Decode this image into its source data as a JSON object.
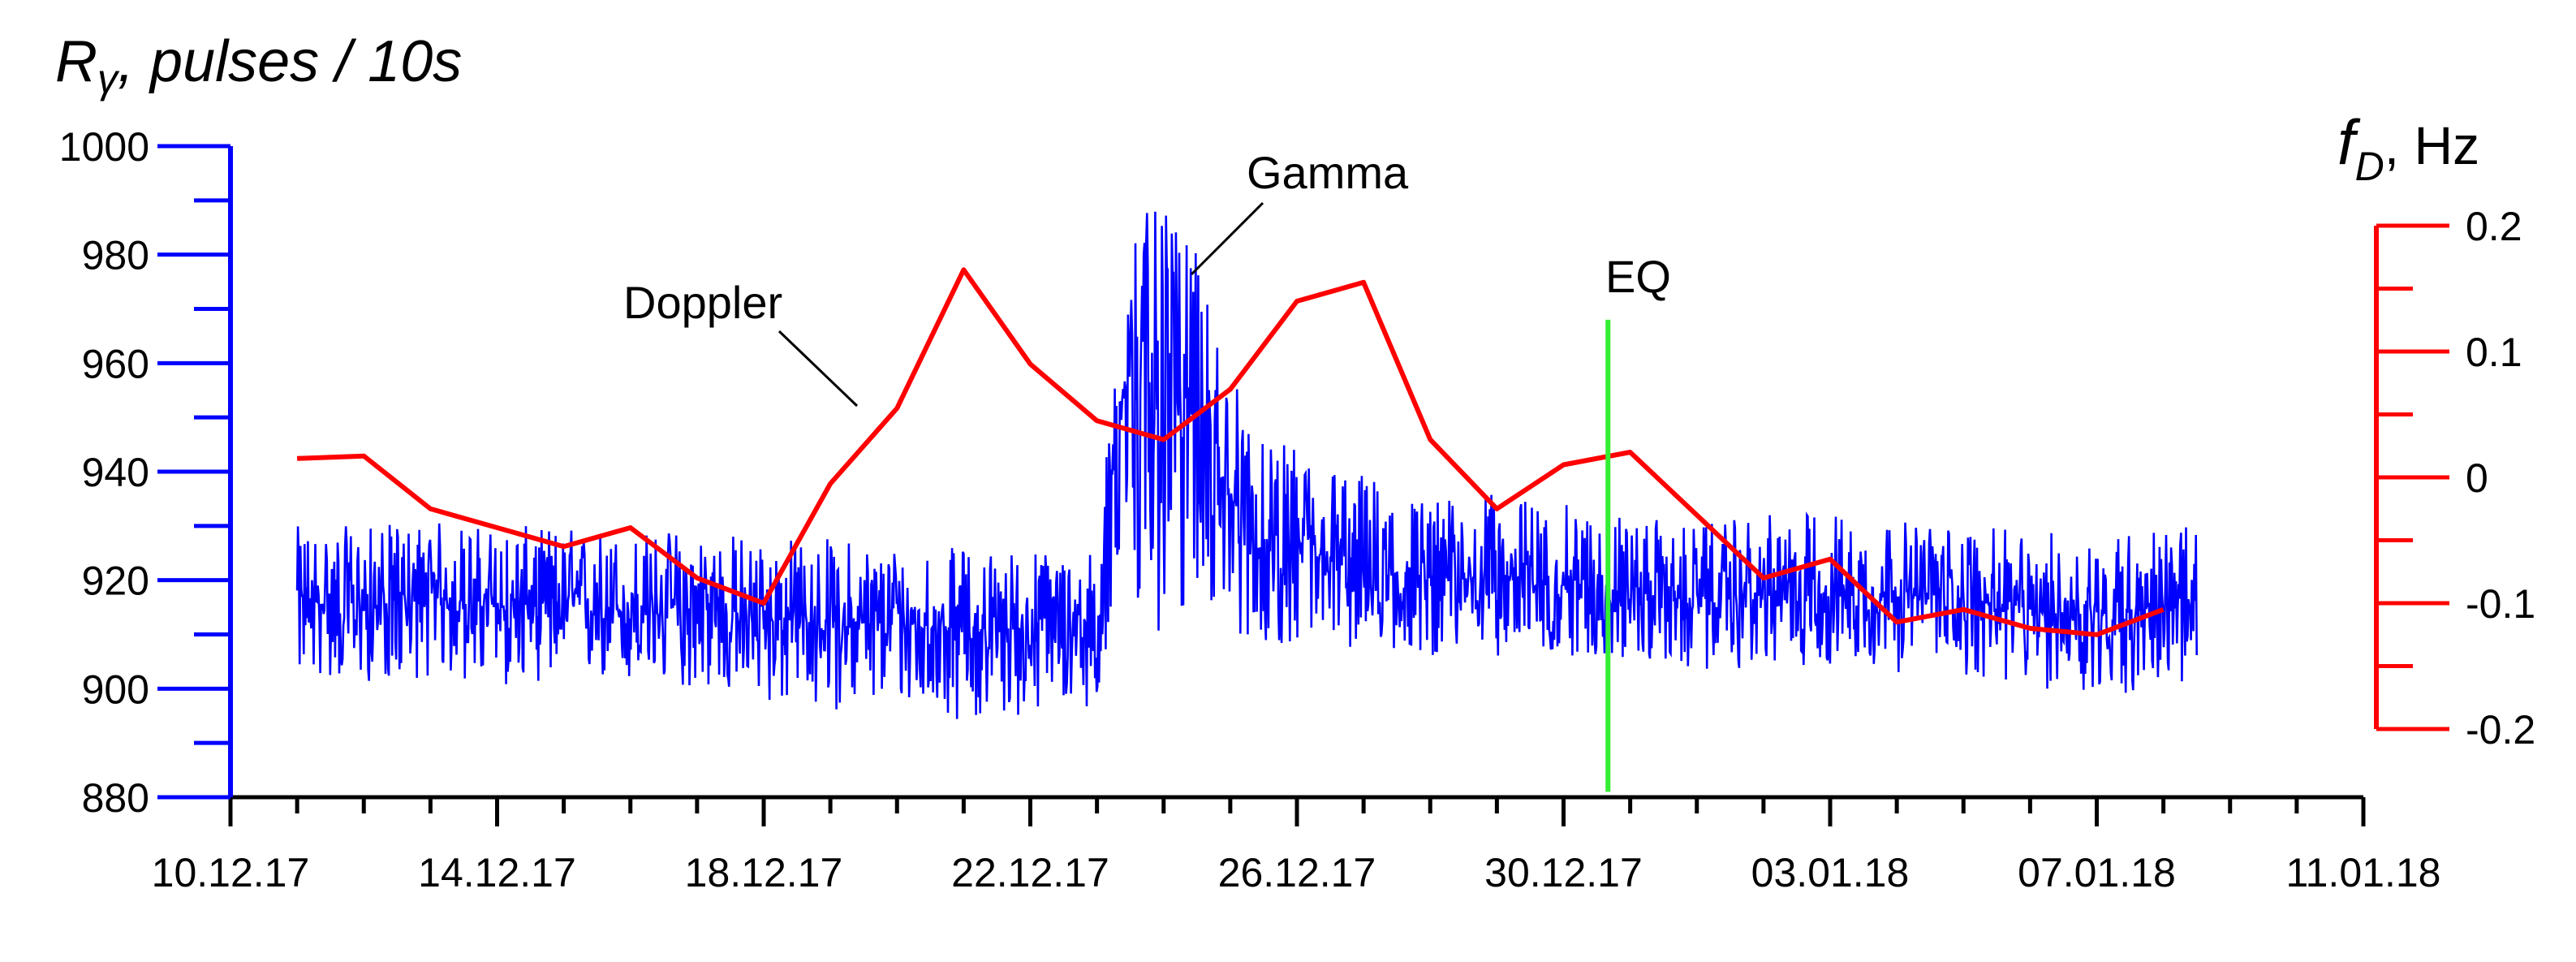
{
  "chart_data": {
    "type": "line",
    "title": "",
    "left_axis": {
      "label": "Rγ, pulses / 10s",
      "label_main": "R",
      "label_sub": "γ",
      "label_rest": ", pulses / 10s",
      "ylim": [
        880,
        1000
      ],
      "ticks": [
        880,
        900,
        920,
        940,
        960,
        980,
        1000
      ],
      "tick_labels": [
        "880",
        "900",
        "920",
        "940",
        "960",
        "980",
        "1000"
      ],
      "color": "#0000ff"
    },
    "right_axis": {
      "label": "fD, Hz",
      "label_main": "f",
      "label_sub": "D",
      "label_rest": ", Hz",
      "ylim": [
        -0.2,
        0.2
      ],
      "ticks": [
        -0.2,
        -0.1,
        0,
        0.1,
        0.2
      ],
      "tick_labels": [
        "-0.2",
        "-0.1",
        "0",
        "0.1",
        "0.2"
      ],
      "color": "#ff0000"
    },
    "x_axis": {
      "xlim": [
        "2017-12-10",
        "2018-01-11"
      ],
      "ticks": [
        "2017-12-10",
        "2017-12-14",
        "2017-12-18",
        "2017-12-22",
        "2017-12-26",
        "2017-12-30",
        "2018-01-03",
        "2018-01-07",
        "2018-01-11"
      ],
      "tick_labels": [
        "10.12.17",
        "14.12.17",
        "18.12.17",
        "22.12.17",
        "26.12.17",
        "30.12.17",
        "03.01.18",
        "07.01.18",
        "11.01.18"
      ]
    },
    "grid": false,
    "series": [
      {
        "name": "Doppler",
        "axis": "right",
        "color": "#ff0000",
        "x": [
          "2017-12-11",
          "2017-12-12",
          "2017-12-13",
          "2017-12-14",
          "2017-12-15",
          "2017-12-16",
          "2017-12-17",
          "2017-12-18",
          "2017-12-19",
          "2017-12-20",
          "2017-12-21",
          "2017-12-22",
          "2017-12-23",
          "2017-12-24",
          "2017-12-25",
          "2017-12-26",
          "2017-12-27",
          "2017-12-28",
          "2017-12-29",
          "2017-12-30",
          "2017-12-31",
          "2018-01-01",
          "2018-01-02",
          "2018-01-03",
          "2018-01-04",
          "2018-01-05",
          "2018-01-06",
          "2018-01-07",
          "2018-01-08"
        ],
        "y": [
          0.015,
          0.017,
          -0.025,
          -0.04,
          -0.055,
          -0.04,
          -0.08,
          -0.1,
          -0.005,
          0.055,
          0.165,
          0.09,
          0.045,
          0.03,
          0.07,
          0.14,
          0.155,
          0.03,
          -0.025,
          0.01,
          0.02,
          -0.03,
          -0.08,
          -0.065,
          -0.115,
          -0.105,
          -0.12,
          -0.125,
          -0.105
        ]
      },
      {
        "name": "Gamma",
        "axis": "left",
        "color": "#0000ff",
        "x": [
          "2017-12-11",
          "2017-12-12",
          "2017-12-13",
          "2017-12-14",
          "2017-12-15",
          "2017-12-16",
          "2017-12-17",
          "2017-12-18",
          "2017-12-19",
          "2017-12-20",
          "2017-12-21",
          "2017-12-22",
          "2017-12-23",
          "2017-12-23T12:00",
          "2017-12-24",
          "2017-12-24T12:00",
          "2017-12-25",
          "2017-12-25T12:00",
          "2017-12-26",
          "2017-12-27",
          "2017-12-28",
          "2017-12-29",
          "2017-12-30",
          "2017-12-31",
          "2018-01-01",
          "2018-01-02",
          "2018-01-03",
          "2018-01-04",
          "2018-01-05",
          "2018-01-06",
          "2018-01-07",
          "2018-01-08",
          "2018-01-08T12:00"
        ],
        "y": [
          916,
          915,
          917,
          915,
          916,
          914,
          915,
          913,
          912,
          912,
          911,
          911,
          911,
          965,
          962,
          950,
          935,
          924,
          925,
          921,
          920,
          921,
          919,
          918,
          916,
          917,
          918,
          917,
          917,
          914,
          914,
          915,
          915
        ],
        "y_min": [
          902,
          901,
          902,
          900,
          902,
          900,
          900,
          897,
          896,
          897,
          894,
          895,
          897,
          905,
          905,
          918,
          910,
          908,
          908,
          907,
          906,
          906,
          906,
          905,
          903,
          904,
          904,
          903,
          902,
          900,
          898,
          900,
          900
        ],
        "y_max": [
          930,
          930,
          931,
          930,
          930,
          929,
          930,
          928,
          928,
          927,
          926,
          926,
          926,
          988,
          988,
          980,
          960,
          945,
          945,
          940,
          935,
          936,
          934,
          932,
          930,
          932,
          933,
          931,
          930,
          929,
          929,
          930,
          930
        ]
      }
    ],
    "annotations": [
      {
        "text": "Doppler",
        "x": "2017-12-19",
        "axis": "left",
        "y": 950
      },
      {
        "text": "Gamma",
        "x": "2017-12-25",
        "axis": "left",
        "y": 976
      },
      {
        "text": "EQ",
        "x": "2017-12-30T16:00",
        "color": "#00dd00"
      }
    ],
    "eq_line": {
      "x": "2017-12-30T16:00",
      "y_from": 881,
      "y_to": 968,
      "axis": "left",
      "color": "#33ee33"
    }
  }
}
